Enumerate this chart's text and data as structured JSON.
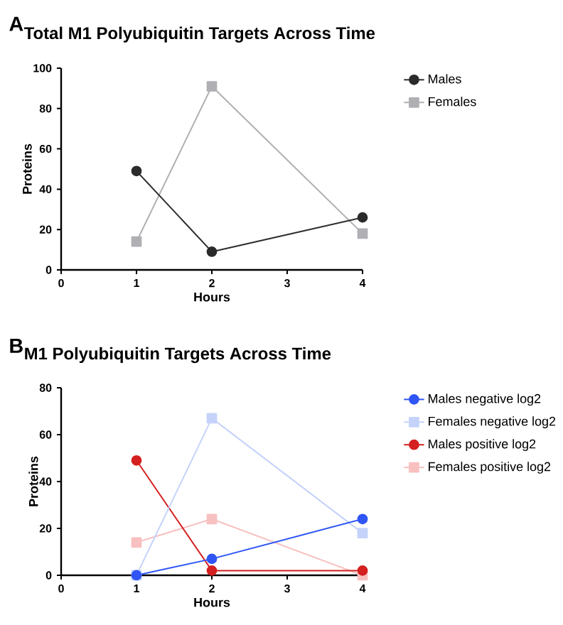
{
  "chart_data": [
    {
      "type": "line",
      "title": "Total M1 Polyubiquitin Targets Across Time",
      "xlabel": "Hours",
      "ylabel": "Proteins",
      "annotations": [
        "A"
      ],
      "x": [
        1,
        2,
        4
      ],
      "series": [
        {
          "name": "Males",
          "color": "#2b2b2b",
          "marker": "circle",
          "values": [
            49,
            9,
            26
          ]
        },
        {
          "name": "Females",
          "color": "#b0b0b4",
          "marker": "square",
          "values": [
            14,
            91,
            18
          ]
        }
      ],
      "xlim": [
        0,
        4
      ],
      "xticks": [
        0,
        1,
        2,
        3,
        4
      ],
      "ylim": [
        0,
        100
      ],
      "yticks": [
        0,
        20,
        40,
        60,
        80,
        100
      ],
      "legend": "right",
      "grid": false
    },
    {
      "type": "line",
      "title": "M1 Polyubiquitin Targets Across Time",
      "xlabel": "Hours",
      "ylabel": "Proteins",
      "annotations": [
        "B"
      ],
      "x": [
        1,
        2,
        4
      ],
      "series": [
        {
          "name": "Males negative log2",
          "color": "#2f55f5",
          "marker": "circle",
          "values": [
            0,
            7,
            24
          ]
        },
        {
          "name": "Females negative log2",
          "color": "#c5d3fb",
          "marker": "square",
          "values": [
            0,
            67,
            18
          ]
        },
        {
          "name": "Males positive log2",
          "color": "#d42020",
          "marker": "circle",
          "values": [
            49,
            2,
            2
          ]
        },
        {
          "name": "Females positive log2",
          "color": "#f8c0c0",
          "marker": "square",
          "values": [
            14,
            24,
            0
          ]
        }
      ],
      "xlim": [
        0,
        4
      ],
      "xticks": [
        0,
        1,
        2,
        3,
        4
      ],
      "ylim": [
        0,
        80
      ],
      "yticks": [
        0,
        20,
        40,
        60,
        80
      ],
      "legend": "right",
      "grid": false
    }
  ]
}
